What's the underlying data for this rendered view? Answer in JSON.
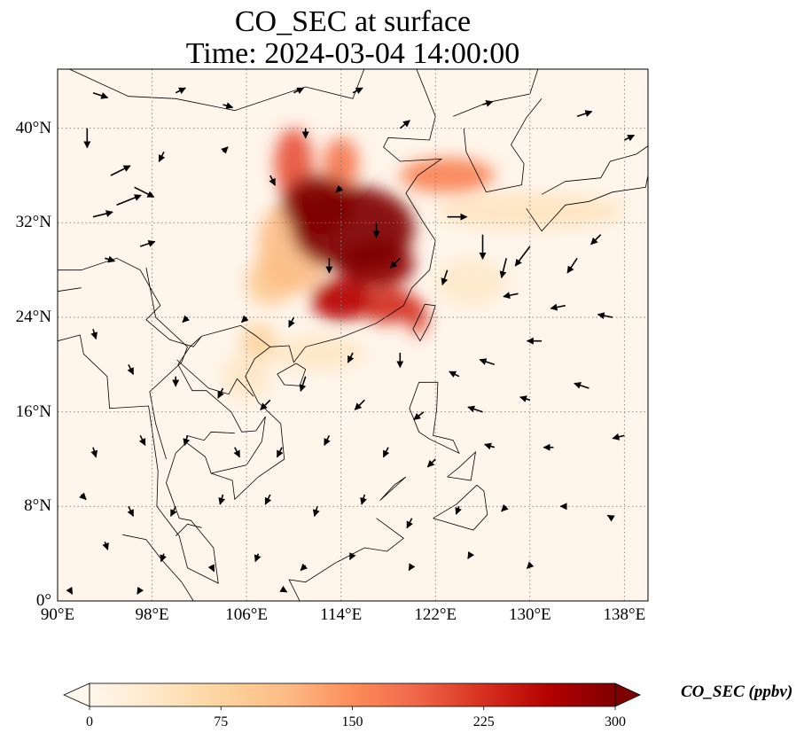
{
  "title": {
    "line1": "CO_SEC at surface",
    "line2": "Time: 2024-03-04 14:00:00"
  },
  "map": {
    "projection": "PlateCarree",
    "extent": {
      "lon_min": 90,
      "lon_max": 140,
      "lat_min": 0,
      "lat_max": 45
    },
    "lon_ticks": [
      {
        "value": 90,
        "label": "90°E"
      },
      {
        "value": 98,
        "label": "98°E"
      },
      {
        "value": 106,
        "label": "106°E"
      },
      {
        "value": 114,
        "label": "114°E"
      },
      {
        "value": 122,
        "label": "122°E"
      },
      {
        "value": 130,
        "label": "130°E"
      },
      {
        "value": 138,
        "label": "138°E"
      }
    ],
    "lat_ticks": [
      {
        "value": 0,
        "label": "0°"
      },
      {
        "value": 8,
        "label": "8°N"
      },
      {
        "value": 16,
        "label": "16°N"
      },
      {
        "value": 24,
        "label": "24°N"
      },
      {
        "value": 32,
        "label": "32°N"
      },
      {
        "value": 40,
        "label": "40°N"
      }
    ],
    "gridlines": "dotted gray",
    "background_color": "#fff5eb",
    "coastline_color": "#000000",
    "wind_vector_color": "#000000"
  },
  "chart_data": {
    "type": "heatmap",
    "variable": "CO_SEC",
    "units": "ppbv",
    "colormap": "OrRd",
    "vmin": 0,
    "vmax": 300,
    "plumes": [
      {
        "lon": 115,
        "lat": 31.5,
        "rlon": 5.2,
        "rlat": 3.6,
        "value": 300
      },
      {
        "lon": 112,
        "lat": 33.5,
        "rlon": 3,
        "rlat": 2.5,
        "value": 300
      },
      {
        "lon": 117,
        "lat": 28.5,
        "rlon": 3.2,
        "rlat": 2,
        "value": 290
      },
      {
        "lon": 114,
        "lat": 25.5,
        "rlon": 2.5,
        "rlat": 1.8,
        "value": 260
      },
      {
        "lon": 118,
        "lat": 25,
        "rlon": 2.5,
        "rlat": 1.5,
        "value": 230
      },
      {
        "lon": 110,
        "lat": 37,
        "rlon": 1.6,
        "rlat": 3,
        "value": 200
      },
      {
        "lon": 114,
        "lat": 37,
        "rlon": 1.5,
        "rlat": 2.2,
        "value": 170
      },
      {
        "lon": 123,
        "lat": 36,
        "rlon": 4,
        "rlat": 1.5,
        "value": 160
      },
      {
        "lon": 120.5,
        "lat": 24,
        "rlon": 0.8,
        "rlat": 1.5,
        "value": 220
      },
      {
        "lon": 110,
        "lat": 30,
        "rlon": 3,
        "rlat": 4,
        "value": 110
      },
      {
        "lon": 108,
        "lat": 27,
        "rlon": 2,
        "rlat": 2,
        "value": 90
      },
      {
        "lon": 107,
        "lat": 22,
        "rlon": 1.5,
        "rlat": 1.5,
        "value": 75
      },
      {
        "lon": 106,
        "lat": 19,
        "rlon": 2,
        "rlat": 2,
        "value": 40
      },
      {
        "lon": 130,
        "lat": 33,
        "rlon": 8,
        "rlat": 1.5,
        "value": 45
      },
      {
        "lon": 112,
        "lat": 21,
        "rlon": 4,
        "rlat": 1.5,
        "value": 40
      },
      {
        "lon": 125,
        "lat": 27,
        "rlon": 3,
        "rlat": 2,
        "value": 35
      }
    ],
    "wind_vectors": [
      {
        "lon": 92.5,
        "lat": 40,
        "u": 0,
        "v": -2
      },
      {
        "lon": 94.5,
        "lat": 36,
        "u": 2,
        "v": 1
      },
      {
        "lon": 96.5,
        "lat": 35,
        "u": 2,
        "v": -1
      },
      {
        "lon": 95,
        "lat": 33.5,
        "u": 2.5,
        "v": 1
      },
      {
        "lon": 93,
        "lat": 32.5,
        "u": 2,
        "v": 0.5
      },
      {
        "lon": 97,
        "lat": 30,
        "u": 1.5,
        "v": 0.5
      },
      {
        "lon": 94,
        "lat": 29,
        "u": 1,
        "v": -0.3
      },
      {
        "lon": 93,
        "lat": 43,
        "u": 1.5,
        "v": -0.5
      },
      {
        "lon": 100,
        "lat": 43,
        "u": 1,
        "v": 0.5
      },
      {
        "lon": 104,
        "lat": 42,
        "u": 1,
        "v": -0.3
      },
      {
        "lon": 110,
        "lat": 43,
        "u": 1,
        "v": 0.5
      },
      {
        "lon": 115,
        "lat": 43,
        "u": 1,
        "v": 0.5
      },
      {
        "lon": 111,
        "lat": 40,
        "u": 0,
        "v": -1
      },
      {
        "lon": 119,
        "lat": 40,
        "u": 1,
        "v": 0.8
      },
      {
        "lon": 126,
        "lat": 42,
        "u": 1,
        "v": 0.3
      },
      {
        "lon": 134,
        "lat": 41,
        "u": 1.5,
        "v": 0.5
      },
      {
        "lon": 138,
        "lat": 39,
        "u": 1,
        "v": 0.5
      },
      {
        "lon": 99,
        "lat": 38,
        "u": -0.5,
        "v": -1
      },
      {
        "lon": 104,
        "lat": 38,
        "u": 0.5,
        "v": 0.5
      },
      {
        "lon": 108,
        "lat": 36,
        "u": 0.5,
        "v": -1
      },
      {
        "lon": 114,
        "lat": 35,
        "u": -0.5,
        "v": -0.5
      },
      {
        "lon": 117,
        "lat": 32,
        "u": 0,
        "v": -1.5
      },
      {
        "lon": 113,
        "lat": 29,
        "u": 0,
        "v": -1.5
      },
      {
        "lon": 119,
        "lat": 29,
        "u": -1,
        "v": -1
      },
      {
        "lon": 123,
        "lat": 32.5,
        "u": 2,
        "v": 0
      },
      {
        "lon": 126,
        "lat": 31,
        "u": 0,
        "v": -2.5
      },
      {
        "lon": 128,
        "lat": 29,
        "u": -0.5,
        "v": -2
      },
      {
        "lon": 130,
        "lat": 30,
        "u": -1.5,
        "v": -2
      },
      {
        "lon": 134,
        "lat": 29,
        "u": -1,
        "v": -1.5
      },
      {
        "lon": 136,
        "lat": 31,
        "u": -1,
        "v": -1
      },
      {
        "lon": 123,
        "lat": 28,
        "u": -0.5,
        "v": -1.5
      },
      {
        "lon": 129,
        "lat": 26,
        "u": -1.5,
        "v": -0.3
      },
      {
        "lon": 133,
        "lat": 25,
        "u": -1.5,
        "v": -0.3
      },
      {
        "lon": 137,
        "lat": 24,
        "u": -1.5,
        "v": 0.3
      },
      {
        "lon": 131,
        "lat": 22,
        "u": -1.5,
        "v": 0
      },
      {
        "lon": 127,
        "lat": 20,
        "u": -1.5,
        "v": 0.5
      },
      {
        "lon": 124,
        "lat": 19,
        "u": -1,
        "v": 0.5
      },
      {
        "lon": 119,
        "lat": 21,
        "u": 0,
        "v": -1.5
      },
      {
        "lon": 115,
        "lat": 21,
        "u": -0.5,
        "v": -1
      },
      {
        "lon": 111,
        "lat": 19,
        "u": -0.5,
        "v": -1.5
      },
      {
        "lon": 108,
        "lat": 17,
        "u": -1,
        "v": -1
      },
      {
        "lon": 104,
        "lat": 18,
        "u": -0.5,
        "v": -1
      },
      {
        "lon": 100,
        "lat": 19,
        "u": 0,
        "v": -1
      },
      {
        "lon": 96,
        "lat": 20,
        "u": 0.5,
        "v": -1
      },
      {
        "lon": 93,
        "lat": 23,
        "u": 0.3,
        "v": -1
      },
      {
        "lon": 101,
        "lat": 24,
        "u": -0.5,
        "v": -0.5
      },
      {
        "lon": 106,
        "lat": 24,
        "u": -0.5,
        "v": -0.5
      },
      {
        "lon": 110,
        "lat": 24,
        "u": -0.5,
        "v": -1
      },
      {
        "lon": 116,
        "lat": 17,
        "u": -1,
        "v": -1
      },
      {
        "lon": 121,
        "lat": 16,
        "u": -1,
        "v": -0.8
      },
      {
        "lon": 126,
        "lat": 16,
        "u": -1.5,
        "v": 0.5
      },
      {
        "lon": 130,
        "lat": 17,
        "u": -1,
        "v": 0.3
      },
      {
        "lon": 135,
        "lat": 18,
        "u": -1.5,
        "v": 0.5
      },
      {
        "lon": 138,
        "lat": 14,
        "u": -1.2,
        "v": -0.3
      },
      {
        "lon": 132,
        "lat": 13,
        "u": -1,
        "v": 0
      },
      {
        "lon": 127,
        "lat": 13,
        "u": -1,
        "v": 0.3
      },
      {
        "lon": 122,
        "lat": 12,
        "u": -0.8,
        "v": -0.8
      },
      {
        "lon": 118,
        "lat": 13,
        "u": -0.5,
        "v": -1
      },
      {
        "lon": 113,
        "lat": 14,
        "u": -0.5,
        "v": -1
      },
      {
        "lon": 109,
        "lat": 13,
        "u": -0.5,
        "v": -1
      },
      {
        "lon": 105,
        "lat": 13,
        "u": 0.5,
        "v": -1
      },
      {
        "lon": 101,
        "lat": 14,
        "u": -0.3,
        "v": -1
      },
      {
        "lon": 97,
        "lat": 14,
        "u": 0.5,
        "v": -1
      },
      {
        "lon": 93,
        "lat": 13,
        "u": 0.3,
        "v": -1
      },
      {
        "lon": 92,
        "lat": 9,
        "u": 0.5,
        "v": -0.5
      },
      {
        "lon": 96,
        "lat": 8,
        "u": 0.5,
        "v": -1
      },
      {
        "lon": 100,
        "lat": 8,
        "u": -0.5,
        "v": -1
      },
      {
        "lon": 104,
        "lat": 9,
        "u": -0.3,
        "v": -1
      },
      {
        "lon": 108,
        "lat": 9,
        "u": -0.5,
        "v": -1
      },
      {
        "lon": 112,
        "lat": 8,
        "u": -0.3,
        "v": -1
      },
      {
        "lon": 116,
        "lat": 9,
        "u": -0.3,
        "v": -1
      },
      {
        "lon": 120,
        "lat": 7,
        "u": -0.5,
        "v": -1
      },
      {
        "lon": 124,
        "lat": 8,
        "u": -0.3,
        "v": -0.8
      },
      {
        "lon": 128,
        "lat": 8,
        "u": -0.5,
        "v": -0.5
      },
      {
        "lon": 133,
        "lat": 8,
        "u": -0.5,
        "v": 0
      },
      {
        "lon": 137,
        "lat": 7,
        "u": -0.5,
        "v": 0.3
      },
      {
        "lon": 94,
        "lat": 5,
        "u": 0.3,
        "v": -0.8
      },
      {
        "lon": 99,
        "lat": 4,
        "u": -0.3,
        "v": -0.8
      },
      {
        "lon": 103,
        "lat": 3,
        "u": 0.3,
        "v": -0.6
      },
      {
        "lon": 107,
        "lat": 4,
        "u": -0.3,
        "v": -0.8
      },
      {
        "lon": 111,
        "lat": 3,
        "u": -0.5,
        "v": -0.5
      },
      {
        "lon": 115,
        "lat": 4,
        "u": -0.3,
        "v": -0.6
      },
      {
        "lon": 120,
        "lat": 3,
        "u": -0.3,
        "v": -0.5
      },
      {
        "lon": 125,
        "lat": 4,
        "u": -0.3,
        "v": -0.5
      },
      {
        "lon": 130,
        "lat": 3,
        "u": -0.3,
        "v": -0.3
      },
      {
        "lon": 91,
        "lat": 1,
        "u": 0.3,
        "v": -0.5
      },
      {
        "lon": 97,
        "lat": 1,
        "u": -0.3,
        "v": -0.5
      },
      {
        "lon": 109,
        "lat": 1,
        "u": 0.5,
        "v": -0.3
      }
    ],
    "colorbar": {
      "label": "CO_SEC (ppbv)",
      "ticks": [
        {
          "value": 0,
          "label": "0"
        },
        {
          "value": 75,
          "label": "75"
        },
        {
          "value": 150,
          "label": "150"
        },
        {
          "value": 225,
          "label": "225"
        },
        {
          "value": 300,
          "label": "300"
        }
      ],
      "extend": "both",
      "colors": [
        "#fff7ec",
        "#fee8c8",
        "#fdd49e",
        "#fdbb84",
        "#fc8d59",
        "#ef6548",
        "#d7301f",
        "#b30000",
        "#7f0000"
      ]
    }
  }
}
